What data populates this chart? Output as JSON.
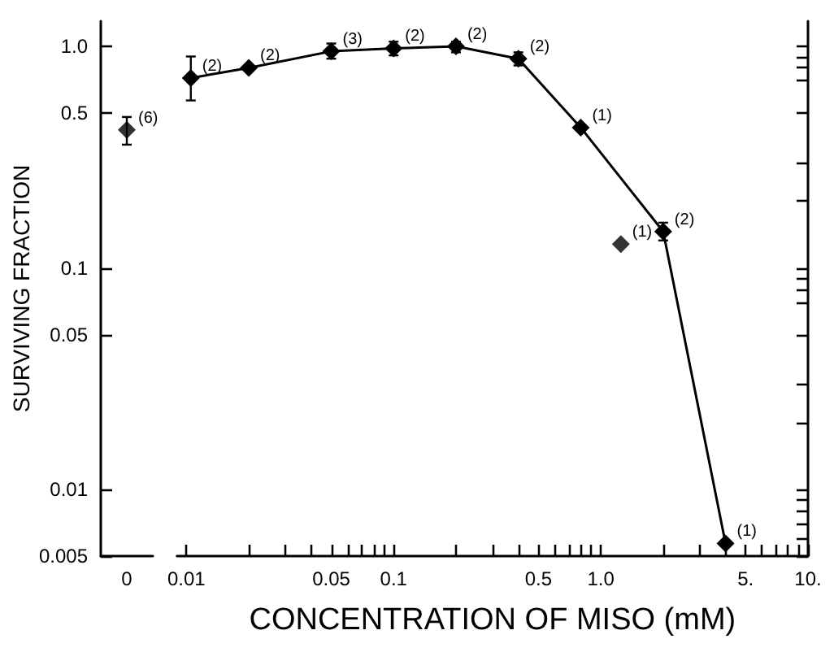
{
  "chart_data": [
    {
      "type": "scatter",
      "ylabel": "SURVIVING FRACTION",
      "categories": [
        "0"
      ],
      "log": "y",
      "marker": "diamond",
      "grid": false,
      "series": [
        {
          "color": "#000000",
          "values": [
            0.42
          ],
          "errors": [
            [
              0.36,
              0.48
            ]
          ]
        }
      ],
      "ylim": [
        0.005,
        1.3
      ],
      "yticks": [
        0.005,
        0.01,
        0.05,
        0.1,
        0.5,
        {
          "value": 1,
          "label": "1.0"
        }
      ],
      "annotations": [
        {
          "text": "(6)",
          "x": "0",
          "y": 0.42
        }
      ]
    },
    {
      "type": "line",
      "xlabel": "CONCENTRATION OF MISO (mM)",
      "log": "xy",
      "marker": "diamond",
      "line_style": "solid",
      "grid": false,
      "tick_labels": "x",
      "series": [
        {
          "color": "#000000",
          "x": [
            0.0105,
            0.02,
            0.05,
            0.1,
            0.2,
            0.4,
            0.8,
            2,
            4
          ],
          "values": [
            0.72,
            0.8,
            0.95,
            0.98,
            1.0,
            0.88,
            0.43,
            0.146,
            0.0057
          ],
          "errors": [
            [
              0.57,
              0.9
            ],
            null,
            [
              0.88,
              1.03
            ],
            [
              0.91,
              1.05
            ],
            [
              0.94,
              1.05
            ],
            [
              0.82,
              0.94
            ],
            null,
            [
              0.133,
              0.16
            ],
            null
          ]
        },
        {
          "type": "scatter",
          "color": "#000000",
          "x": [
            1.25
          ],
          "values": [
            0.128
          ]
        }
      ],
      "xlim": [
        0.009,
        10
      ],
      "ylim": [
        0.005,
        1.3
      ],
      "xticks": [
        0.01,
        {
          "value": 0.02,
          "label": null
        },
        {
          "value": 0.03,
          "label": null
        },
        {
          "value": 0.04,
          "label": null
        },
        0.05,
        {
          "value": 0.06,
          "label": null
        },
        {
          "value": 0.07,
          "label": null
        },
        {
          "value": 0.08,
          "label": null
        },
        {
          "value": 0.09,
          "label": null
        },
        0.1,
        {
          "value": 0.2,
          "label": null
        },
        {
          "value": 0.3,
          "label": null
        },
        {
          "value": 0.4,
          "label": null
        },
        0.5,
        {
          "value": 0.6,
          "label": null
        },
        {
          "value": 0.7,
          "label": null
        },
        {
          "value": 0.8,
          "label": null
        },
        {
          "value": 0.9,
          "label": null
        },
        {
          "value": 1,
          "label": "1.0"
        },
        {
          "value": 2,
          "label": null
        },
        {
          "value": 3,
          "label": null
        },
        {
          "value": 4,
          "label": null
        },
        {
          "value": 5,
          "label": "5."
        },
        {
          "value": 6,
          "label": null
        },
        {
          "value": 7,
          "label": null
        },
        {
          "value": 8,
          "label": null
        },
        {
          "value": 9,
          "label": null
        },
        {
          "value": 10,
          "label": "10."
        }
      ],
      "yticks": [
        0.005,
        {
          "value": 0.006,
          "label": null
        },
        {
          "value": 0.007,
          "label": null
        },
        {
          "value": 0.008,
          "label": null
        },
        {
          "value": 0.009,
          "label": null
        },
        0.01,
        {
          "value": 0.02,
          "label": null
        },
        {
          "value": 0.03,
          "label": null
        },
        0.05,
        {
          "value": 0.07,
          "label": null
        },
        {
          "value": 0.08,
          "label": null
        },
        {
          "value": 0.09,
          "label": null
        },
        0.1,
        {
          "value": 0.2,
          "label": null
        },
        {
          "value": 0.3,
          "label": null
        },
        0.5,
        {
          "value": 0.7,
          "label": null
        },
        {
          "value": 0.8,
          "label": null
        },
        {
          "value": 0.9,
          "label": null
        },
        1
      ],
      "annotations": [
        {
          "text": "(2)",
          "x": 0.0105,
          "y": 0.72
        },
        {
          "text": "(2)",
          "x": 0.02,
          "y": 0.8
        },
        {
          "text": "(3)",
          "x": 0.05,
          "y": 0.95
        },
        {
          "text": "(2)",
          "x": 0.1,
          "y": 0.98
        },
        {
          "text": "(2)",
          "x": 0.2,
          "y": 1.0
        },
        {
          "text": "(2)",
          "x": 0.4,
          "y": 0.88
        },
        {
          "text": "(1)",
          "x": 0.8,
          "y": 0.43
        },
        {
          "text": "(1)",
          "x": 1.25,
          "y": 0.128
        },
        {
          "text": "(2)",
          "x": 2,
          "y": 0.146
        },
        {
          "text": "(1)",
          "x": 4,
          "y": 0.0057
        }
      ]
    }
  ]
}
